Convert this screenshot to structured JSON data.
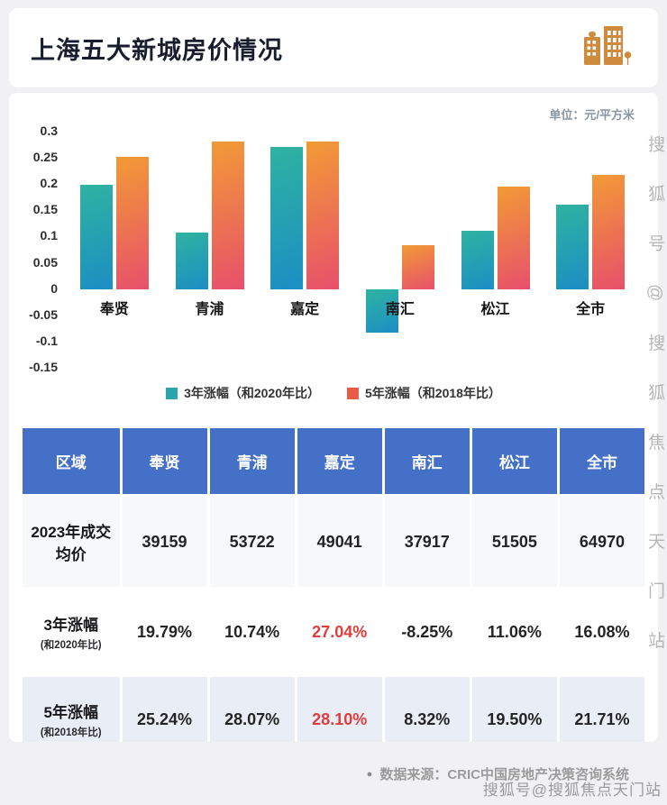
{
  "header": {
    "title": "上海五大新城房价情况"
  },
  "chart": {
    "unit_label": "单位：元/平方米"
  },
  "chart_data": {
    "type": "bar",
    "title": "上海五大新城房价情况",
    "categories": [
      "奉贤",
      "青浦",
      "嘉定",
      "南汇",
      "松江",
      "全市"
    ],
    "series": [
      {
        "name": "3年涨幅（和2020年比）",
        "legend_color": "#2BA6AE",
        "gradient": [
          "#2FB3A1",
          "#1B8EC4"
        ],
        "values": [
          0.1979,
          0.1074,
          0.2704,
          -0.0825,
          0.1106,
          0.1608
        ]
      },
      {
        "name": "5年涨幅（和2018年比）",
        "legend_color": "#EA5B47",
        "gradient": [
          "#F29A36",
          "#E7506B"
        ],
        "values": [
          0.2524,
          0.2807,
          0.281,
          0.0832,
          0.195,
          0.2171
        ]
      }
    ],
    "xlabel": "",
    "ylabel": "",
    "ylim": [
      -0.15,
      0.3
    ],
    "yticks": [
      "0.3",
      "0.25",
      "0.2",
      "0.15",
      "0.1",
      "0.05",
      "0",
      "-0.05",
      "-0.1",
      "-0.15"
    ],
    "grid": false,
    "legend_position": "bottom"
  },
  "table": {
    "header": [
      "区域",
      "奉贤",
      "青浦",
      "嘉定",
      "南汇",
      "松江",
      "全市"
    ],
    "rows": [
      {
        "label": "2023年成交均价",
        "sub": "",
        "values": [
          "39159",
          "53722",
          "49041",
          "37917",
          "51505",
          "64970"
        ],
        "highlight": []
      },
      {
        "label": "3年涨幅",
        "sub": "(和2020年比)",
        "values": [
          "19.79%",
          "10.74%",
          "27.04%",
          "-8.25%",
          "11.06%",
          "16.08%"
        ],
        "highlight": [
          2
        ]
      },
      {
        "label": "5年涨幅",
        "sub": "(和2018年比)",
        "values": [
          "25.24%",
          "28.07%",
          "28.10%",
          "8.32%",
          "19.50%",
          "21.71%"
        ],
        "highlight": [
          2
        ]
      }
    ]
  },
  "footer": {
    "bullet": "●",
    "source": "数据来源：CRIC中国房地产决策咨询系统"
  },
  "watermark": {
    "text": "搜狐号@搜狐焦点天门站"
  },
  "colors": {
    "header_blue": "#4470C8",
    "highlight_red": "#E23C3C",
    "teal_bar_top": "#2FB3A1",
    "teal_bar_bottom": "#1B8EC4",
    "orange_bar_top": "#F29A36",
    "orange_bar_bottom": "#E7506B",
    "icon_orange": "#CF8B3D",
    "title_color": "#1A1D2E"
  }
}
